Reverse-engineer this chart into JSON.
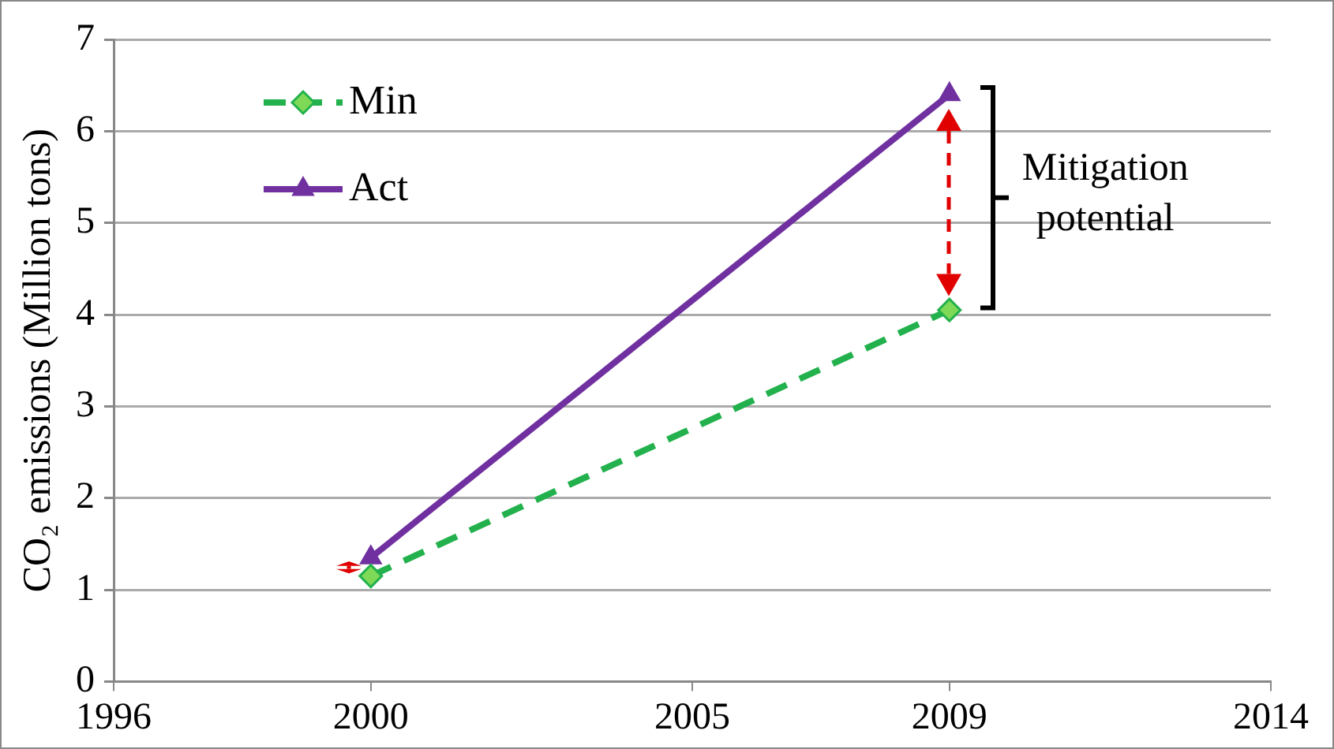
{
  "chart_data": {
    "type": "line",
    "ylabel": "CO₂ emissions (Million tons)",
    "xlim": [
      1996,
      2014
    ],
    "xticks": [
      1996,
      2000,
      2005,
      2009,
      2014
    ],
    "ylim": [
      0,
      7
    ],
    "yticks": [
      0,
      1,
      2,
      3,
      4,
      5,
      6,
      7
    ],
    "x": [
      2000,
      2009
    ],
    "grid": "y",
    "legend": "top left",
    "series": [
      {
        "name": "Min",
        "color": "#22b14c",
        "values": [
          1.15,
          4.05
        ],
        "marker": "diamond",
        "line_style": "dashed"
      },
      {
        "name": "Act",
        "color": "#7030a0",
        "values": [
          1.35,
          6.4
        ],
        "marker": "triangle",
        "line_style": "solid"
      }
    ],
    "annotations": [
      "Mitigation potential"
    ]
  }
}
